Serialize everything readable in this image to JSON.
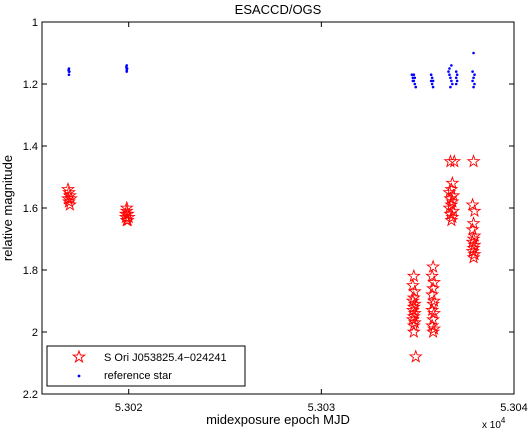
{
  "chart_data": {
    "type": "scatter",
    "title": "ESACCD/OGS",
    "xlabel": "midexposure epoch MJD",
    "ylabel": "relative magnitude",
    "x_multiplier_label": "x 10",
    "x_multiplier_exponent": "4",
    "xlim": [
      53015.5,
      53040
    ],
    "ylim": [
      1.0,
      2.2
    ],
    "y_reversed": true,
    "grid": false,
    "legend_position": "bottom-left",
    "x_ticks": [
      {
        "value": 53020,
        "label": "5.302"
      },
      {
        "value": 53030,
        "label": "5.303"
      },
      {
        "value": 53040,
        "label": "5.304"
      }
    ],
    "y_ticks": [
      {
        "value": 1.0,
        "label": "1"
      },
      {
        "value": 1.2,
        "label": "1.2"
      },
      {
        "value": 1.4,
        "label": "1.4"
      },
      {
        "value": 1.6,
        "label": "1.6"
      },
      {
        "value": 1.8,
        "label": "1.8"
      },
      {
        "value": 2.0,
        "label": "2"
      },
      {
        "value": 2.2,
        "label": "2.2"
      }
    ],
    "series": [
      {
        "name": "S Ori J053825.4−024241",
        "marker": "star",
        "color": "#ff0000",
        "points": [
          [
            53016.9,
            1.55
          ],
          [
            53016.95,
            1.56
          ],
          [
            53016.85,
            1.57
          ],
          [
            53017.0,
            1.57
          ],
          [
            53016.9,
            1.58
          ],
          [
            53016.95,
            1.59
          ],
          [
            53016.85,
            1.54
          ],
          [
            53019.9,
            1.61
          ],
          [
            53019.95,
            1.62
          ],
          [
            53019.85,
            1.63
          ],
          [
            53020.0,
            1.63
          ],
          [
            53019.9,
            1.64
          ],
          [
            53019.95,
            1.64
          ],
          [
            53019.85,
            1.62
          ],
          [
            53019.9,
            1.6
          ],
          [
            53034.8,
            1.82
          ],
          [
            53034.75,
            1.85
          ],
          [
            53034.85,
            1.87
          ],
          [
            53034.8,
            1.89
          ],
          [
            53034.75,
            1.9
          ],
          [
            53034.85,
            1.91
          ],
          [
            53034.8,
            1.92
          ],
          [
            53034.75,
            1.93
          ],
          [
            53034.85,
            1.94
          ],
          [
            53034.8,
            1.95
          ],
          [
            53034.75,
            1.96
          ],
          [
            53034.85,
            1.97
          ],
          [
            53034.8,
            1.98
          ],
          [
            53034.8,
            2.0
          ],
          [
            53034.9,
            2.08
          ],
          [
            53035.8,
            1.79
          ],
          [
            53035.75,
            1.82
          ],
          [
            53035.85,
            1.84
          ],
          [
            53035.8,
            1.86
          ],
          [
            53035.75,
            1.88
          ],
          [
            53035.85,
            1.9
          ],
          [
            53035.8,
            1.91
          ],
          [
            53035.75,
            1.93
          ],
          [
            53035.85,
            1.94
          ],
          [
            53035.8,
            1.96
          ],
          [
            53035.75,
            1.98
          ],
          [
            53035.85,
            1.99
          ],
          [
            53035.8,
            2.0
          ],
          [
            53036.7,
            1.45
          ],
          [
            53036.8,
            1.52
          ],
          [
            53036.75,
            1.54
          ],
          [
            53036.65,
            1.55
          ],
          [
            53036.85,
            1.56
          ],
          [
            53036.7,
            1.57
          ],
          [
            53036.8,
            1.58
          ],
          [
            53036.75,
            1.59
          ],
          [
            53036.65,
            1.6
          ],
          [
            53036.85,
            1.61
          ],
          [
            53036.7,
            1.62
          ],
          [
            53036.8,
            1.63
          ],
          [
            53036.75,
            1.64
          ],
          [
            53036.9,
            1.45
          ],
          [
            53037.9,
            1.45
          ],
          [
            53037.85,
            1.59
          ],
          [
            53037.95,
            1.61
          ],
          [
            53037.9,
            1.65
          ],
          [
            53037.85,
            1.67
          ],
          [
            53037.95,
            1.69
          ],
          [
            53037.9,
            1.7
          ],
          [
            53037.85,
            1.71
          ],
          [
            53037.95,
            1.72
          ],
          [
            53037.9,
            1.73
          ],
          [
            53037.85,
            1.74
          ],
          [
            53037.95,
            1.75
          ],
          [
            53037.9,
            1.76
          ]
        ]
      },
      {
        "name": "reference star",
        "marker": "dot",
        "color": "#0000ff",
        "points": [
          [
            53016.9,
            1.15
          ],
          [
            53016.9,
            1.16
          ],
          [
            53016.9,
            1.17
          ],
          [
            53016.92,
            1.16
          ],
          [
            53016.88,
            1.155
          ],
          [
            53019.9,
            1.14
          ],
          [
            53019.9,
            1.15
          ],
          [
            53019.9,
            1.16
          ],
          [
            53019.92,
            1.15
          ],
          [
            53019.88,
            1.145
          ],
          [
            53019.9,
            1.155
          ],
          [
            53034.7,
            1.17
          ],
          [
            53034.75,
            1.18
          ],
          [
            53034.8,
            1.19
          ],
          [
            53034.85,
            1.2
          ],
          [
            53034.9,
            1.21
          ],
          [
            53034.75,
            1.19
          ],
          [
            53034.85,
            1.18
          ],
          [
            53034.8,
            1.17
          ],
          [
            53035.7,
            1.17
          ],
          [
            53035.75,
            1.18
          ],
          [
            53035.8,
            1.19
          ],
          [
            53035.75,
            1.2
          ],
          [
            53035.8,
            1.21
          ],
          [
            53035.7,
            1.19
          ],
          [
            53036.6,
            1.16
          ],
          [
            53036.65,
            1.17
          ],
          [
            53036.7,
            1.18
          ],
          [
            53036.75,
            1.19
          ],
          [
            53036.8,
            1.2
          ],
          [
            53036.65,
            1.15
          ],
          [
            53036.75,
            1.14
          ],
          [
            53036.7,
            1.21
          ],
          [
            53037.0,
            1.16
          ],
          [
            53037.05,
            1.17
          ],
          [
            53037.0,
            1.18
          ],
          [
            53037.05,
            1.19
          ],
          [
            53037.0,
            1.2
          ],
          [
            53037.9,
            1.1
          ],
          [
            53037.85,
            1.16
          ],
          [
            53037.95,
            1.17
          ],
          [
            53037.9,
            1.18
          ],
          [
            53037.85,
            1.19
          ],
          [
            53037.95,
            1.2
          ],
          [
            53037.9,
            1.21
          ]
        ]
      }
    ]
  }
}
